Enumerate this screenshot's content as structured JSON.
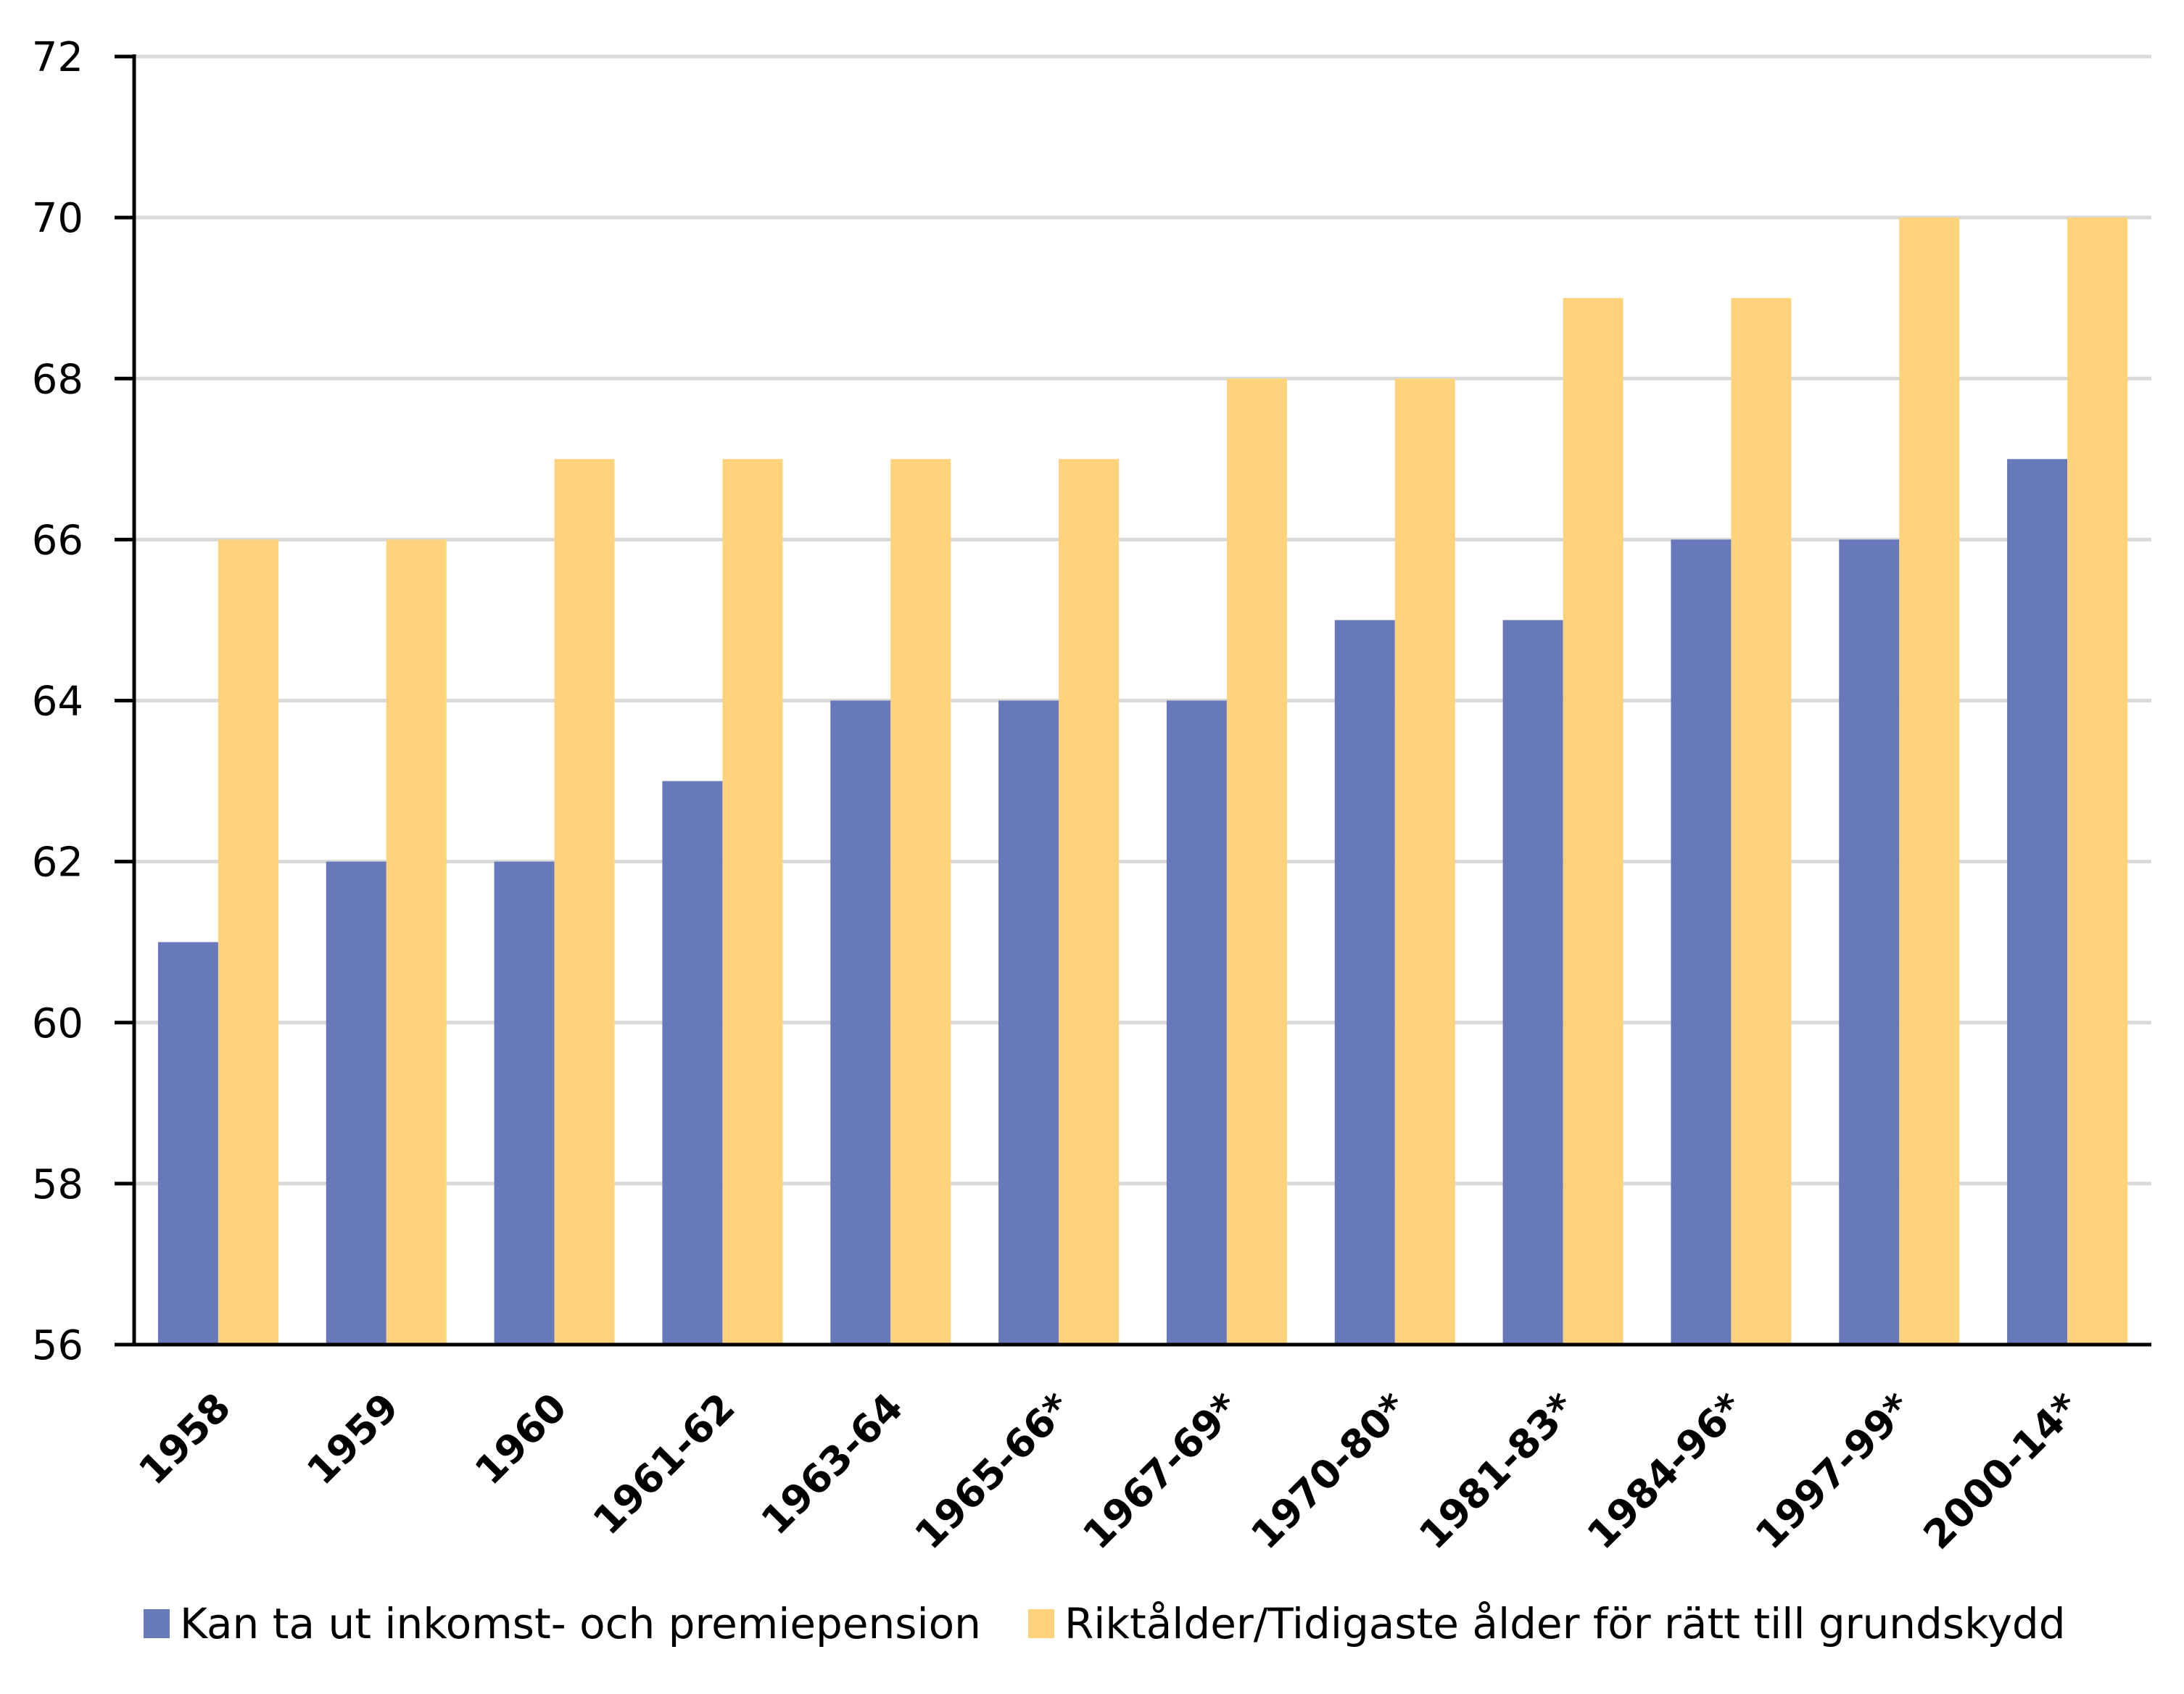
{
  "chart_data": {
    "type": "bar",
    "title": "",
    "xlabel": "",
    "ylabel": "",
    "ylim": [
      56,
      72
    ],
    "yticks": [
      56,
      58,
      60,
      62,
      64,
      66,
      68,
      70,
      72
    ],
    "grid": true,
    "legend_position": "bottom",
    "categories": [
      "1958",
      "1959",
      "1960",
      "1961-62",
      "1963-64",
      "1965-66*",
      "1967-69*",
      "1970-80*",
      "1981-83*",
      "1984-96*",
      "1997-99*",
      "2000-14*"
    ],
    "series": [
      {
        "name": "Kan ta ut inkomst- och premiepension",
        "color": "#6879BB",
        "values": [
          61,
          62,
          62,
          63,
          64,
          64,
          64,
          65,
          65,
          66,
          66,
          67
        ]
      },
      {
        "name": "Riktålder/Tidigaste ålder för rätt till grundskydd",
        "color": "#FED37B",
        "values": [
          66,
          66,
          67,
          67,
          67,
          67,
          68,
          68,
          69,
          69,
          70,
          70
        ]
      }
    ]
  }
}
